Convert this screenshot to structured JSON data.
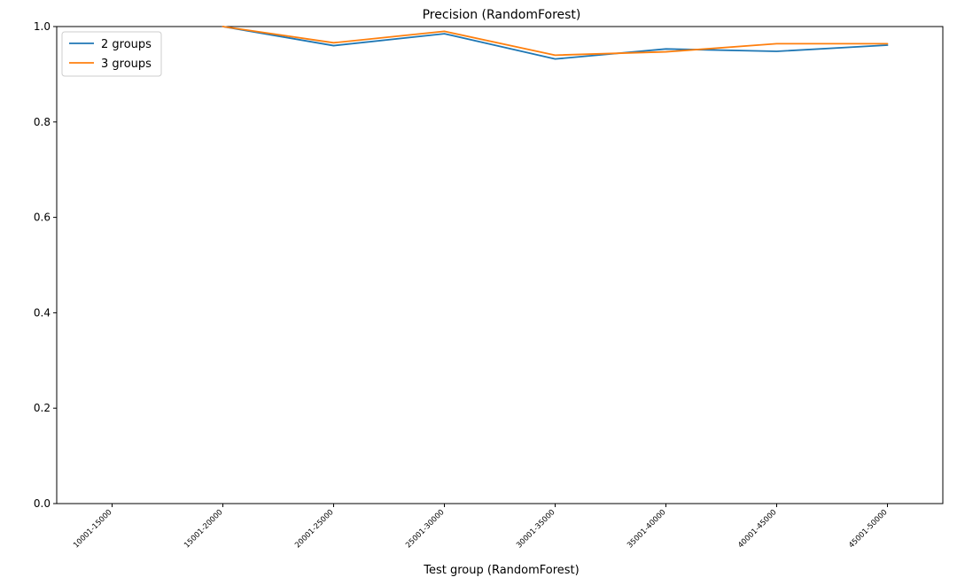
{
  "chart_data": {
    "type": "line",
    "title": "Precision (RandomForest)",
    "xlabel": "Test group (RandomForest)",
    "ylabel": "",
    "categories": [
      "10001-15000",
      "15001-20000",
      "20001-25000",
      "25001-30000",
      "30001-35000",
      "35001-40000",
      "40001-45000",
      "45001-50000"
    ],
    "x_index": [
      0,
      1,
      2,
      3,
      4,
      5,
      6,
      7
    ],
    "ylim": [
      0.0,
      1.0
    ],
    "yticks": [
      "0.0",
      "0.2",
      "0.4",
      "0.6",
      "0.8",
      "1.0"
    ],
    "ytick_values": [
      0.0,
      0.2,
      0.4,
      0.6,
      0.8,
      1.0
    ],
    "series": [
      {
        "name": "2 groups",
        "color": "#1f77b4",
        "x": [
          1,
          2,
          3,
          4,
          5,
          6,
          7
        ],
        "values": [
          1.0,
          0.96,
          0.985,
          0.932,
          0.953,
          0.948,
          0.961
        ]
      },
      {
        "name": "3 groups",
        "color": "#ff7f0e",
        "x": [
          1,
          2,
          3,
          4,
          5,
          6,
          7
        ],
        "values": [
          1.0,
          0.966,
          0.99,
          0.94,
          0.947,
          0.964,
          0.964
        ]
      }
    ],
    "legend_position": "top-left",
    "grid": false
  }
}
